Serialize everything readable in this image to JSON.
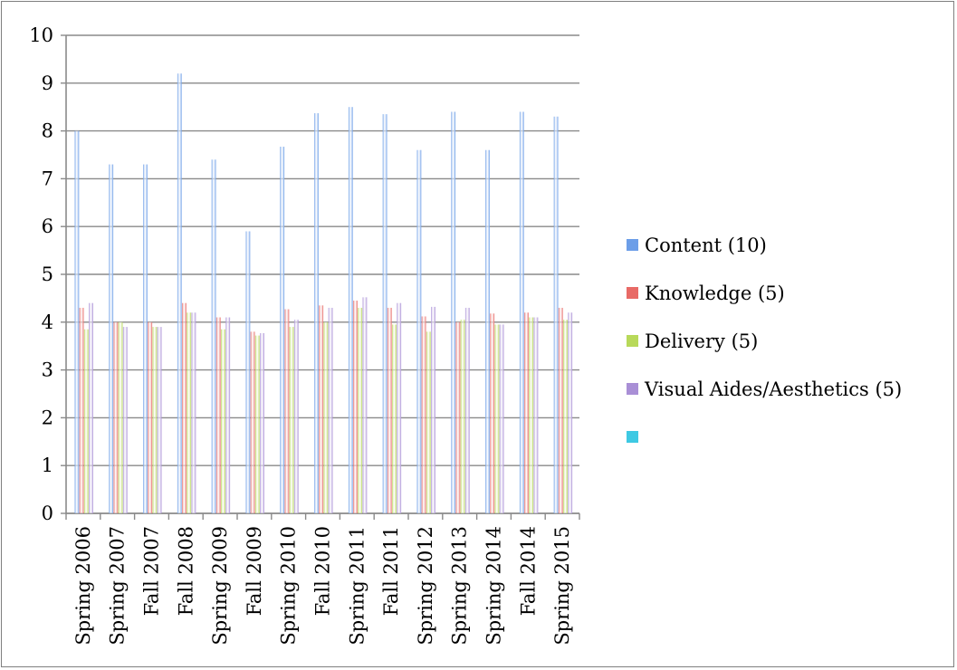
{
  "chart_data": {
    "type": "bar",
    "title": "",
    "xlabel": "",
    "ylabel": "",
    "ylim": [
      0,
      10
    ],
    "yticks": [
      0,
      1,
      2,
      3,
      4,
      5,
      6,
      7,
      8,
      9,
      10
    ],
    "grid": true,
    "legend_position": "right",
    "categories": [
      "Spring 2006",
      "Spring 2007",
      "Fall 2007",
      "Fall 2008",
      "Spring 2009",
      "Fall 2009",
      "Spring 2010",
      "Fall 2010",
      "Spring 2011",
      "Fall 2011",
      "Spring 2012",
      "Spring 2013",
      "Spring 2014",
      "Fall 2014",
      "Spring 2015"
    ],
    "series": [
      {
        "name": "Content (10)",
        "color": "#6c9ee8",
        "values": [
          8.0,
          7.3,
          7.3,
          9.2,
          7.4,
          5.9,
          7.67,
          8.37,
          8.5,
          8.35,
          7.6,
          8.4,
          7.6,
          8.4,
          8.3
        ]
      },
      {
        "name": "Knowledge (5)",
        "color": "#e86a66",
        "values": [
          4.3,
          4.0,
          4.0,
          4.4,
          4.1,
          3.8,
          4.27,
          4.35,
          4.45,
          4.3,
          4.12,
          4.0,
          4.18,
          4.2,
          4.3
        ]
      },
      {
        "name": "Delivery (5)",
        "color": "#b8d95a",
        "values": [
          3.85,
          4.0,
          3.9,
          4.2,
          3.85,
          3.72,
          3.9,
          4.0,
          4.3,
          3.95,
          3.8,
          4.05,
          3.95,
          4.1,
          4.05
        ]
      },
      {
        "name": "Visual Aides/Aesthetics (5)",
        "color": "#a98fd6",
        "values": [
          4.4,
          3.9,
          3.9,
          4.2,
          4.1,
          3.77,
          4.05,
          4.3,
          4.52,
          4.4,
          4.32,
          4.3,
          3.95,
          4.1,
          4.2
        ]
      }
    ],
    "legend_extra": {
      "name": "",
      "color": "#3ec9e3"
    }
  }
}
